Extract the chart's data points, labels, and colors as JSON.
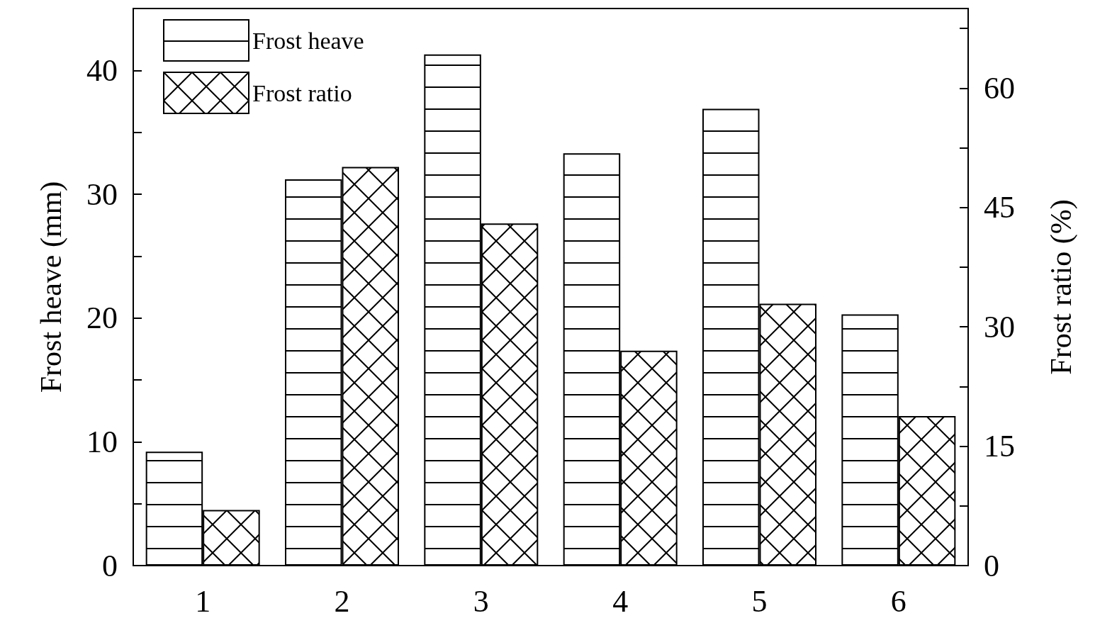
{
  "chart_data": {
    "type": "bar",
    "xlabel": null,
    "ylabel": "Frost heave (mm)",
    "y2label": "Frost ratio (%)",
    "categories": [
      "1",
      "2",
      "3",
      "4",
      "5",
      "6"
    ],
    "series": [
      {
        "name": "Frost heave",
        "color": "#000000",
        "values": [
          9.2,
          31.2,
          41.3,
          33.3,
          36.9,
          20.3
        ]
      },
      {
        "name": "Frost ratio",
        "color": "#000000",
        "axis": "y2",
        "values": [
          7.0,
          50.1,
          43.0,
          27.0,
          32.9,
          18.8
        ]
      }
    ],
    "ylim": [
      0,
      45
    ],
    "yticks": [
      0,
      {
        "value": 5,
        "label": null
      },
      10,
      {
        "value": 15,
        "label": null
      },
      20,
      {
        "value": 25,
        "label": null
      },
      30,
      {
        "value": 35,
        "label": null
      },
      40
    ],
    "y2lim": [
      0,
      70
    ],
    "y2ticks": [
      0,
      {
        "value": 7.5,
        "label": null
      },
      15,
      {
        "value": 22.5,
        "label": null
      },
      30,
      {
        "value": 37.5,
        "label": null
      },
      45,
      {
        "value": 52.5,
        "label": null
      },
      60,
      {
        "value": 67.5,
        "label": null
      }
    ],
    "legend": "top left",
    "grid": false
  }
}
